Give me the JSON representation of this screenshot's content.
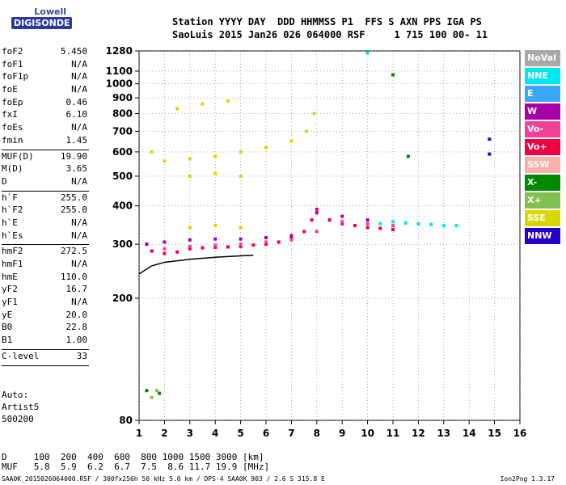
{
  "logo": {
    "line1": "Lowell",
    "line2": "DIGISONDE"
  },
  "header": {
    "line1": "Station YYYY DAY  DDD HHMMSS P1  FFS S AXN PPS IGA PS",
    "line2": "SaoLuis 2015 Jan26 026 064000 RSF     1 715 100 00- 11"
  },
  "params": [
    {
      "label": "foF2",
      "value": "5.450"
    },
    {
      "label": "foF1",
      "value": "N/A"
    },
    {
      "label": "foF1p",
      "value": "N/A"
    },
    {
      "label": "foE",
      "value": "N/A"
    },
    {
      "label": "foEp",
      "value": "0.46"
    },
    {
      "label": "fxI",
      "value": "6.10"
    },
    {
      "label": "foEs",
      "value": "N/A"
    },
    {
      "label": "fmin",
      "value": "1.45"
    },
    {
      "sep": true
    },
    {
      "label": "MUF(D)",
      "value": "19.90"
    },
    {
      "label": "M(D)",
      "value": "3.65"
    },
    {
      "label": "D",
      "value": "N/A"
    },
    {
      "sep": true
    },
    {
      "label": "h`F",
      "value": "255.0"
    },
    {
      "label": "h`F2",
      "value": "255.0"
    },
    {
      "label": "h`E",
      "value": "N/A"
    },
    {
      "label": "h`Es",
      "value": "N/A"
    },
    {
      "sep": true
    },
    {
      "label": "hmF2",
      "value": "272.5"
    },
    {
      "label": "hmF1",
      "value": "N/A"
    },
    {
      "label": "hmE",
      "value": "110.0"
    },
    {
      "label": "yF2",
      "value": "16.7"
    },
    {
      "label": "yF1",
      "value": "N/A"
    },
    {
      "label": "yE",
      "value": "20.0"
    },
    {
      "label": "B0",
      "value": "22.8"
    },
    {
      "label": "B1",
      "value": "1.00"
    },
    {
      "sep": true
    },
    {
      "label": "C-level",
      "value": "33"
    },
    {
      "sep": true
    }
  ],
  "auto": {
    "line1": "Auto:",
    "line2": "Artist5",
    "line3": "500200"
  },
  "bottom": {
    "d_row": "D     100  200  400  600  800 1000 1500 3000 [km]",
    "muf_row": "MUF   5.8  5.9  6.2  6.7  7.5  8.6 11.7 19.9 [MHz]"
  },
  "footer": {
    "left": "SAA0K_2015026064000.RSF / 300fx256h 50 kHz 5.0 km / DPS-4 SAA0K 903 / 2.6 S 315.8 E",
    "right": "Ion2Png 1.3.17"
  },
  "legend": [
    {
      "label": "NoVal",
      "color": "#a8a8a8"
    },
    {
      "label": "NNE",
      "color": "#00e8f0"
    },
    {
      "label": "E",
      "color": "#3aa8f8"
    },
    {
      "label": "W",
      "color": "#a800a8"
    },
    {
      "label": "Vo-",
      "color": "#f0409a"
    },
    {
      "label": "Vo+",
      "color": "#f00040"
    },
    {
      "label": "SSW",
      "color": "#f8b0a8"
    },
    {
      "label": "X-",
      "color": "#008800"
    },
    {
      "label": "X+",
      "color": "#80c050"
    },
    {
      "label": "SSE",
      "color": "#d8d800"
    },
    {
      "label": "NNW",
      "color": "#2800c8"
    }
  ],
  "chart_data": {
    "type": "scatter",
    "title": "",
    "xlabel": "",
    "ylabel": "",
    "xlim": [
      1,
      16
    ],
    "ylim": [
      80,
      1280
    ],
    "y_scale": "log",
    "x_ticks": [
      "1",
      "2",
      "3",
      "4",
      "5",
      "6",
      "7",
      "8",
      "9",
      "10",
      "11",
      "12",
      "13",
      "14",
      "15",
      "16"
    ],
    "y_ticks": [
      "80",
      "200",
      "300",
      "400",
      "500",
      "600",
      "700",
      "800",
      "900",
      "1000",
      "1100",
      "1280"
    ],
    "grid": true,
    "legend_position": "right",
    "series": [
      {
        "name": "",
        "color": "#f00040",
        "points": [
          [
            1.5,
            285
          ],
          [
            2,
            280
          ],
          [
            2.5,
            283
          ],
          [
            3,
            290
          ],
          [
            3.5,
            292
          ],
          [
            4,
            293
          ],
          [
            4.5,
            294
          ],
          [
            5,
            295
          ],
          [
            5.5,
            298
          ],
          [
            6,
            300
          ],
          [
            6.5,
            305
          ],
          [
            7,
            315
          ],
          [
            7.5,
            330
          ],
          [
            7.8,
            360
          ],
          [
            8,
            390
          ],
          [
            8.5,
            360
          ],
          [
            9,
            350
          ],
          [
            9.5,
            345
          ],
          [
            10,
            340
          ],
          [
            10.5,
            338
          ],
          [
            11,
            335
          ]
        ]
      },
      {
        "name": "",
        "color": "#a800a8",
        "points": [
          [
            1.3,
            300
          ],
          [
            2,
            305
          ],
          [
            3,
            310
          ],
          [
            4,
            312
          ],
          [
            5,
            312
          ],
          [
            6,
            315
          ],
          [
            7,
            320
          ],
          [
            8,
            380
          ],
          [
            9,
            370
          ],
          [
            10,
            360
          ]
        ]
      },
      {
        "name": "",
        "color": "#f0409a",
        "points": [
          [
            2,
            290
          ],
          [
            3,
            295
          ],
          [
            4,
            298
          ],
          [
            5,
            300
          ],
          [
            6,
            305
          ],
          [
            7,
            310
          ],
          [
            8,
            330
          ],
          [
            9,
            355
          ],
          [
            10,
            350
          ],
          [
            11,
            345
          ]
        ]
      },
      {
        "name": "",
        "color": "#d8d800",
        "points": [
          [
            1.5,
            600
          ],
          [
            2,
            560
          ],
          [
            3,
            570
          ],
          [
            4,
            580
          ],
          [
            5,
            600
          ],
          [
            6,
            620
          ],
          [
            7,
            650
          ],
          [
            7.6,
            700
          ],
          [
            7.9,
            800
          ],
          [
            2.5,
            830
          ],
          [
            3.5,
            860
          ],
          [
            4.5,
            880
          ],
          [
            3,
            500
          ],
          [
            4,
            510
          ],
          [
            5,
            500
          ],
          [
            3,
            340
          ],
          [
            4,
            345
          ],
          [
            5,
            340
          ]
        ]
      },
      {
        "name": "",
        "color": "#00e8f0",
        "points": [
          [
            10.5,
            350
          ],
          [
            11,
            355
          ],
          [
            11.5,
            352
          ],
          [
            12,
            350
          ],
          [
            12.5,
            348
          ],
          [
            13,
            345
          ],
          [
            13.5,
            345
          ],
          [
            10,
            1260
          ]
        ]
      },
      {
        "name": "",
        "color": "#008800",
        "points": [
          [
            1.3,
            100
          ],
          [
            1.8,
            98
          ],
          [
            11,
            1070
          ],
          [
            11.6,
            580
          ]
        ]
      },
      {
        "name": "",
        "color": "#2800c8",
        "points": [
          [
            14.8,
            660
          ],
          [
            14.8,
            590
          ]
        ]
      },
      {
        "name": "",
        "color": "#80c050",
        "points": [
          [
            1.5,
            95
          ],
          [
            1.7,
            100
          ]
        ]
      }
    ],
    "model_curve": {
      "name": "",
      "color": "#000000",
      "points": [
        [
          1.0,
          240
        ],
        [
          1.5,
          255
        ],
        [
          2,
          262
        ],
        [
          3,
          268
        ],
        [
          4,
          272
        ],
        [
          5,
          275
        ],
        [
          5.5,
          276
        ]
      ]
    }
  }
}
